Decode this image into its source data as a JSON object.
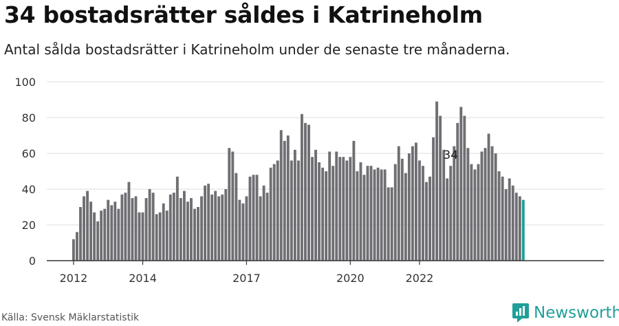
{
  "title": "34 bostadsrätter såldes i Katrineholm",
  "subtitle": "Antal sålda bostadsrätter i Katrineholm under de senaste tre månaderna.",
  "source": "Källa: Svensk Mäklarstatistik",
  "brand": "Newsworthy",
  "colors": {
    "bar": "#6f6e73",
    "highlight": "#1f9f98",
    "grid": "#dddddd",
    "axis": "#333333"
  },
  "chart_data": {
    "type": "bar",
    "xlabel": "",
    "ylabel": "",
    "ylim": [
      0,
      100
    ],
    "yticks": [
      0,
      20,
      40,
      60,
      80,
      100
    ],
    "xticks": [
      {
        "label": "2012",
        "index": 0
      },
      {
        "label": "2014",
        "index": 20
      },
      {
        "label": "2017",
        "index": 50
      },
      {
        "label": "2020",
        "index": 80
      },
      {
        "label": "2022",
        "index": 100
      }
    ],
    "grid": true,
    "annotation": {
      "text": "34",
      "index": 109
    },
    "values": [
      12,
      16,
      30,
      36,
      39,
      33,
      27,
      22,
      28,
      29,
      34,
      31,
      33,
      29,
      37,
      38,
      44,
      35,
      36,
      27,
      27,
      35,
      40,
      38,
      26,
      27,
      32,
      28,
      37,
      38,
      47,
      35,
      39,
      33,
      35,
      29,
      30,
      36,
      42,
      43,
      37,
      39,
      36,
      37,
      40,
      63,
      61,
      49,
      34,
      32,
      36,
      47,
      48,
      48,
      36,
      42,
      38,
      52,
      54,
      56,
      73,
      67,
      70,
      56,
      62,
      56,
      82,
      77,
      76,
      58,
      62,
      55,
      52,
      50,
      61,
      53,
      61,
      58,
      58,
      56,
      58,
      67,
      50,
      55,
      48,
      53,
      53,
      51,
      52,
      51,
      51,
      41,
      41,
      54,
      64,
      57,
      49,
      60,
      64,
      66,
      56,
      53,
      44,
      47,
      69,
      89,
      81,
      62,
      46,
      53,
      64,
      77,
      86,
      81,
      63,
      54,
      51,
      54,
      61,
      63,
      71,
      64,
      60,
      50,
      47,
      40,
      46,
      42,
      38,
      36,
      34
    ]
  }
}
